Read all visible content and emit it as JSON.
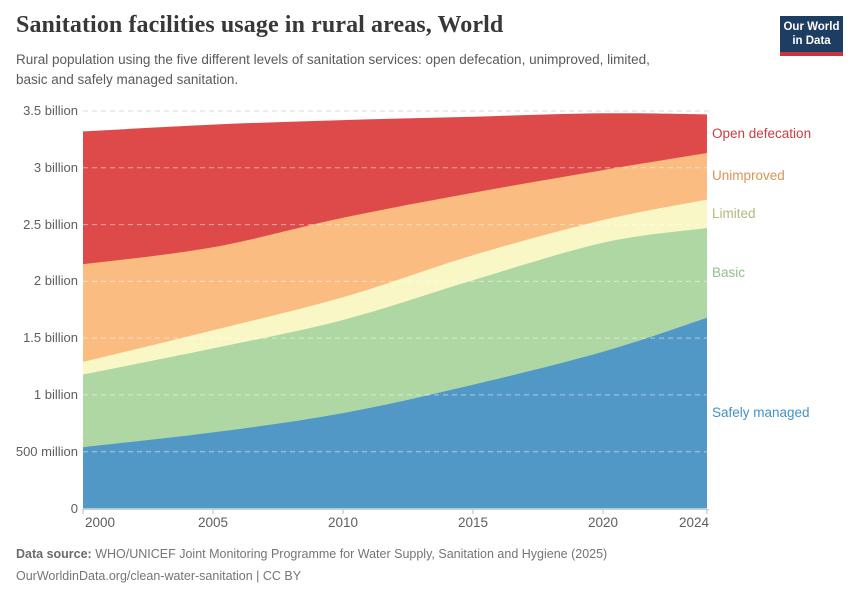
{
  "header": {
    "title": "Sanitation facilities usage in rural areas, World",
    "subtitle_line1": "Rural population using the five different levels of sanitation services: open defecation, unimproved, limited,",
    "subtitle_line2": "basic and safely managed sanitation.",
    "logo": {
      "line1": "Our World",
      "line2": "in Data",
      "bg_color": "#1d3d63",
      "stripe_color": "#c9353f"
    }
  },
  "footer": {
    "source_label": "Data source:",
    "source_text": " WHO/UNICEF Joint Monitoring Programme for Water Supply, Sanitation and Hygiene (2025)",
    "link_line": "OurWorldinData.org/clean-water-sanitation | CC BY"
  },
  "chart_data": {
    "type": "area",
    "stacked": true,
    "title": "Sanitation facilities usage in rural areas, World",
    "unit": "billion people",
    "x": [
      2000,
      2005,
      2010,
      2015,
      2020,
      2024
    ],
    "x_tick_labels": [
      "2000",
      "2005",
      "2010",
      "2015",
      "2020",
      "2024"
    ],
    "y_ticks": [
      0,
      0.5,
      1,
      1.5,
      2,
      2.5,
      3,
      3.5
    ],
    "y_tick_labels": [
      "0",
      "500 million",
      "1 billion",
      "1.5 billion",
      "2 billion",
      "2.5 billion",
      "3 billion",
      "3.5 billion"
    ],
    "ylim": [
      0,
      3.5
    ],
    "grid": "dashed",
    "legend_position": "right",
    "series": [
      {
        "name": "Safely managed",
        "color": "#5298c7",
        "label_color": "#4291ca",
        "values": [
          0.54,
          0.67,
          0.84,
          1.09,
          1.38,
          1.68
        ]
      },
      {
        "name": "Basic",
        "color": "#aed7a4",
        "label_color": "#92c088",
        "values": [
          0.64,
          0.74,
          0.82,
          0.92,
          0.96,
          0.79
        ]
      },
      {
        "name": "Limited",
        "color": "#faf7c6",
        "label_color": "#b4b97d",
        "values": [
          0.11,
          0.16,
          0.2,
          0.22,
          0.2,
          0.25
        ]
      },
      {
        "name": "Unimproved",
        "color": "#fabc81",
        "label_color": "#dc9355",
        "values": [
          0.86,
          0.73,
          0.7,
          0.55,
          0.44,
          0.41
        ]
      },
      {
        "name": "Open defecation",
        "color": "#de4a4a",
        "label_color": "#cb3d41",
        "values": [
          1.17,
          1.08,
          0.86,
          0.67,
          0.5,
          0.34
        ]
      }
    ]
  }
}
